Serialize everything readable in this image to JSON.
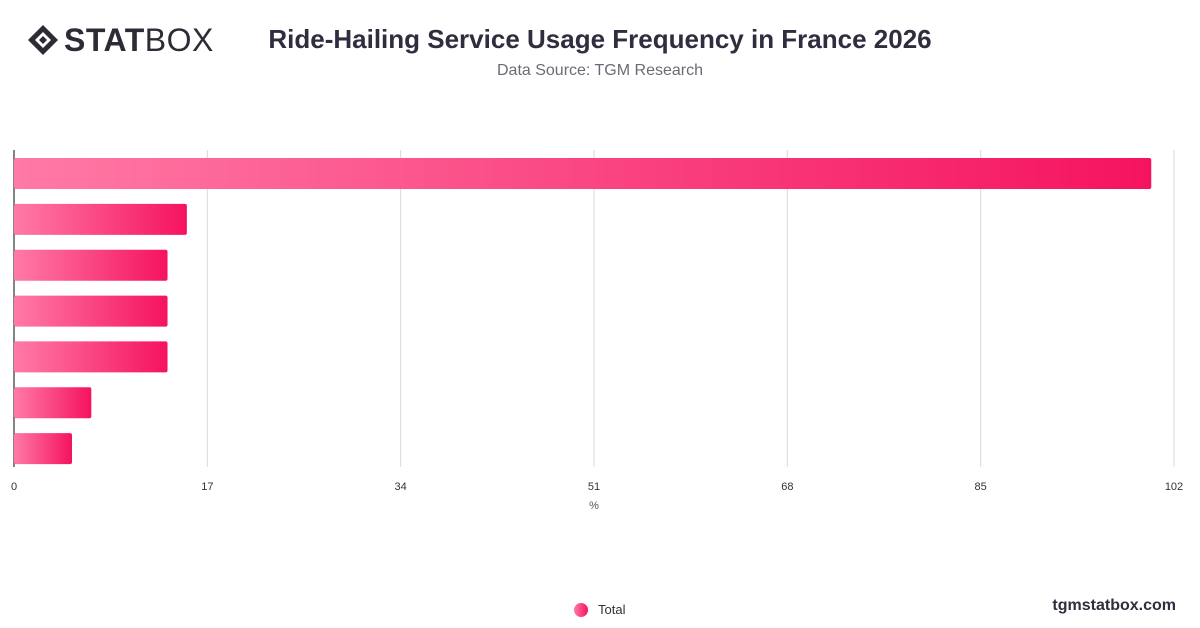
{
  "header": {
    "logo_bold": "STAT",
    "logo_light": "BOX",
    "title": "Ride-Hailing Service Usage Frequency in France 2026",
    "subtitle": "Data Source: TGM Research"
  },
  "footer": {
    "brand": "tgmstatbox.com"
  },
  "colors": {
    "bar_start": "#ff7aa6",
    "bar_end": "#f5135f",
    "grid": "#d9d9d9",
    "axis_text": "#333333"
  },
  "chart_data": {
    "type": "bar",
    "orientation": "horizontal",
    "categories": [
      "",
      "",
      "",
      "",
      "",
      "",
      ""
    ],
    "series": [
      {
        "name": "Total",
        "values": [
          100,
          15.2,
          13.5,
          13.5,
          13.5,
          6.8,
          5.1
        ]
      }
    ],
    "xlabel": "%",
    "ylabel": "",
    "xlim": [
      0,
      102
    ],
    "xticks": [
      0,
      17,
      34,
      51,
      68,
      85,
      102
    ],
    "grid": true,
    "legend": "bottom-center"
  }
}
